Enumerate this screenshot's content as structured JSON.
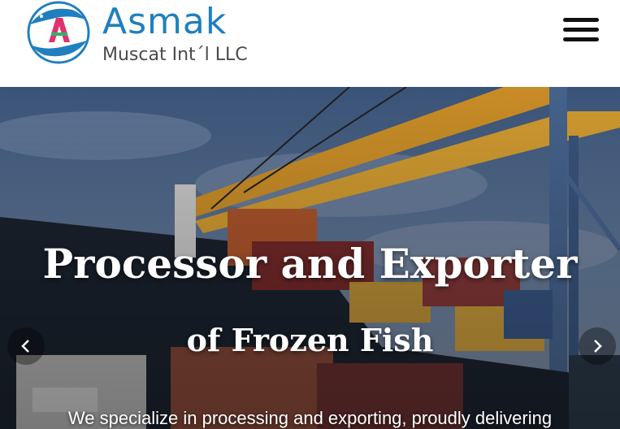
{
  "header": {
    "brand_name": "Asmak",
    "brand_subtitle": "Muscat Int´l LLC",
    "logo_icon": "fish-circle-logo-icon",
    "menu_icon": "hamburger-menu-icon",
    "colors": {
      "brand_blue": "#1f7fc0",
      "logo_pink": "#e0326e",
      "logo_green": "#2fb36b"
    }
  },
  "hero": {
    "title_line1": "Processor and Exporter",
    "title_line2": "of Frozen Fish",
    "description": "We specialize in processing and exporting, proudly delivering",
    "prev_icon": "chevron-left-icon",
    "next_icon": "chevron-right-icon",
    "background_icon": "cargo-ship-port-cranes-photo"
  }
}
